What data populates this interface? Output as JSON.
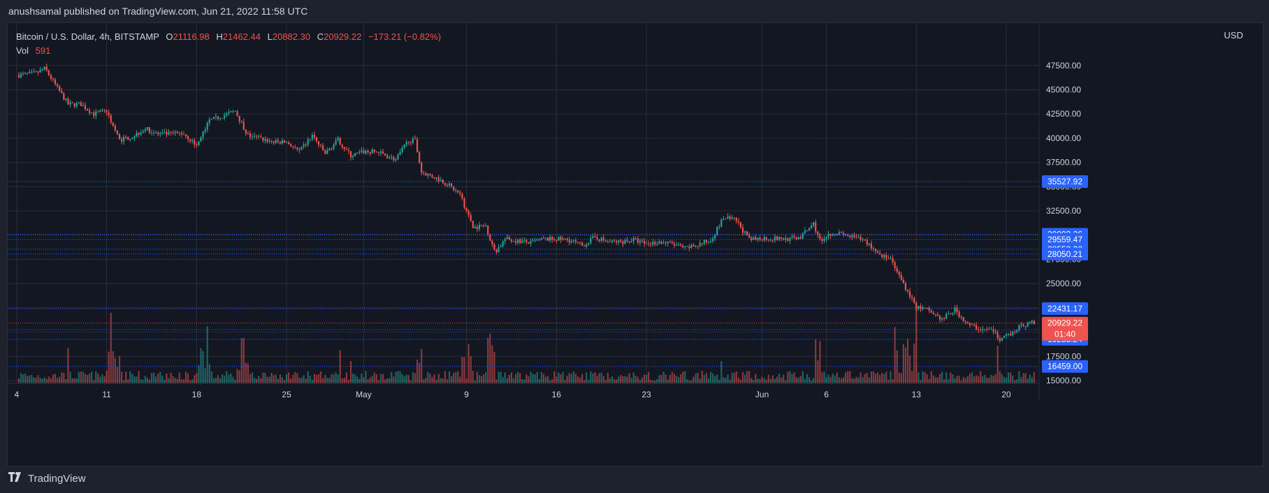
{
  "publication": "anushsamal published on TradingView.com, Jun 21, 2022 11:58 UTC",
  "footer": {
    "brand": "TradingView",
    "logo_icon": "tradingview-logo-icon"
  },
  "legend": {
    "symbol": "Bitcoin / U.S. Dollar, 4h, BITSTAMP",
    "open_label": "O",
    "open": "21116.98",
    "high_label": "H",
    "high": "21462.44",
    "low_label": "L",
    "low": "20882.30",
    "close_label": "C",
    "close": "20929.22",
    "change": "−173.21 (−0.82%)",
    "vol_label": "Vol",
    "vol": "591"
  },
  "currency": "USD",
  "colors": {
    "up": "#26a69a",
    "down": "#ef5350",
    "background": "#131722",
    "grid": "#2a2e39",
    "level_line": "#2962ff",
    "level_tag": "#2962ff",
    "price_tag": "#ef5350",
    "text": "#d1d4dc"
  },
  "chart_data": {
    "type": "candlestick",
    "interval": "4h",
    "y_axis": {
      "min": 15000,
      "max": 49000,
      "ticks": [
        "47500.00",
        "45000.00",
        "42500.00",
        "40000.00",
        "37500.00",
        "35000.00",
        "32500.00",
        "30000.00",
        "27500.00",
        "25000.00",
        "22500.00",
        "20000.00",
        "17500.00",
        "15000.00"
      ],
      "tick_values": [
        47500,
        45000,
        42500,
        40000,
        37500,
        35000,
        32500,
        30000,
        27500,
        25000,
        22500,
        20000,
        17500,
        15000
      ]
    },
    "x_axis": {
      "labels": [
        "4",
        "11",
        "18",
        "25",
        "May",
        "9",
        "16",
        "23",
        "Jun",
        "6",
        "13",
        "20"
      ],
      "label_days": [
        0,
        7,
        14,
        21,
        27,
        35,
        42,
        49,
        58,
        63,
        70,
        77
      ],
      "day_range": [
        -0.7,
        79.5
      ]
    },
    "grid": true,
    "price_levels": [
      {
        "label": "35527.92",
        "value": 35527.92
      },
      {
        "label": "30093.26",
        "value": 30093.26
      },
      {
        "label": "29559.47",
        "value": 29559.47
      },
      {
        "label": "28553.30",
        "value": 28553.3
      },
      {
        "label": "28050.21",
        "value": 28050.21
      },
      {
        "label": "22431.17",
        "value": 22431.17
      },
      {
        "label": "20253.61",
        "value": 20253.61
      },
      {
        "label": "19255.24",
        "value": 19255.24
      },
      {
        "label": "16459.00",
        "value": 16459.0
      }
    ],
    "current_price": {
      "label": "20929.22",
      "countdown": "01:40",
      "value": 20929.22
    },
    "anchors": [
      {
        "day": 0,
        "price": 46500
      },
      {
        "day": 1.5,
        "price": 46700
      },
      {
        "day": 2.2,
        "price": 47200
      },
      {
        "day": 3,
        "price": 45500
      },
      {
        "day": 4,
        "price": 43500
      },
      {
        "day": 5,
        "price": 43500
      },
      {
        "day": 6,
        "price": 42500
      },
      {
        "day": 7,
        "price": 42800
      },
      {
        "day": 8,
        "price": 39800
      },
      {
        "day": 9,
        "price": 40200
      },
      {
        "day": 10,
        "price": 41000
      },
      {
        "day": 11,
        "price": 40400
      },
      {
        "day": 13,
        "price": 40500
      },
      {
        "day": 14,
        "price": 39200
      },
      {
        "day": 15,
        "price": 41800
      },
      {
        "day": 17,
        "price": 42800
      },
      {
        "day": 18,
        "price": 40300
      },
      {
        "day": 20,
        "price": 39600
      },
      {
        "day": 21,
        "price": 39600
      },
      {
        "day": 22,
        "price": 38600
      },
      {
        "day": 23,
        "price": 40300
      },
      {
        "day": 24,
        "price": 38400
      },
      {
        "day": 25,
        "price": 39800
      },
      {
        "day": 26,
        "price": 38200
      },
      {
        "day": 27,
        "price": 38600
      },
      {
        "day": 28,
        "price": 38600
      },
      {
        "day": 29.5,
        "price": 37800
      },
      {
        "day": 30.5,
        "price": 39800
      },
      {
        "day": 31,
        "price": 39700
      },
      {
        "day": 31.5,
        "price": 36500
      },
      {
        "day": 32.5,
        "price": 36000
      },
      {
        "day": 33.5,
        "price": 35300
      },
      {
        "day": 34.5,
        "price": 34200
      },
      {
        "day": 35.5,
        "price": 30800
      },
      {
        "day": 36.5,
        "price": 31000
      },
      {
        "day": 37.2,
        "price": 28200
      },
      {
        "day": 38,
        "price": 29600
      },
      {
        "day": 39,
        "price": 29400
      },
      {
        "day": 40,
        "price": 29200
      },
      {
        "day": 41,
        "price": 29600
      },
      {
        "day": 42,
        "price": 29600
      },
      {
        "day": 43,
        "price": 29500
      },
      {
        "day": 44,
        "price": 28900
      },
      {
        "day": 45,
        "price": 29800
      },
      {
        "day": 46,
        "price": 29300
      },
      {
        "day": 47,
        "price": 29300
      },
      {
        "day": 48,
        "price": 29500
      },
      {
        "day": 49,
        "price": 29100
      },
      {
        "day": 50,
        "price": 29300
      },
      {
        "day": 51,
        "price": 29100
      },
      {
        "day": 52,
        "price": 28600
      },
      {
        "day": 53,
        "price": 29000
      },
      {
        "day": 54,
        "price": 29500
      },
      {
        "day": 55,
        "price": 31800
      },
      {
        "day": 56,
        "price": 31500
      },
      {
        "day": 57,
        "price": 29500
      },
      {
        "day": 58,
        "price": 29700
      },
      {
        "day": 60,
        "price": 29600
      },
      {
        "day": 61,
        "price": 29800
      },
      {
        "day": 62,
        "price": 31200
      },
      {
        "day": 62.5,
        "price": 29500
      },
      {
        "day": 63.5,
        "price": 30300
      },
      {
        "day": 65,
        "price": 29800
      },
      {
        "day": 66,
        "price": 29400
      },
      {
        "day": 67,
        "price": 28200
      },
      {
        "day": 68,
        "price": 27400
      },
      {
        "day": 69,
        "price": 25000
      },
      {
        "day": 70,
        "price": 22600
      },
      {
        "day": 71,
        "price": 22200
      },
      {
        "day": 72,
        "price": 21300
      },
      {
        "day": 73,
        "price": 22300
      },
      {
        "day": 74,
        "price": 20800
      },
      {
        "day": 75,
        "price": 20300
      },
      {
        "day": 76,
        "price": 20200
      },
      {
        "day": 76.5,
        "price": 19000
      },
      {
        "day": 77,
        "price": 19600
      },
      {
        "day": 78,
        "price": 20500
      },
      {
        "day": 79,
        "price": 21000
      },
      {
        "day": 79.2,
        "price": 20929
      }
    ]
  }
}
